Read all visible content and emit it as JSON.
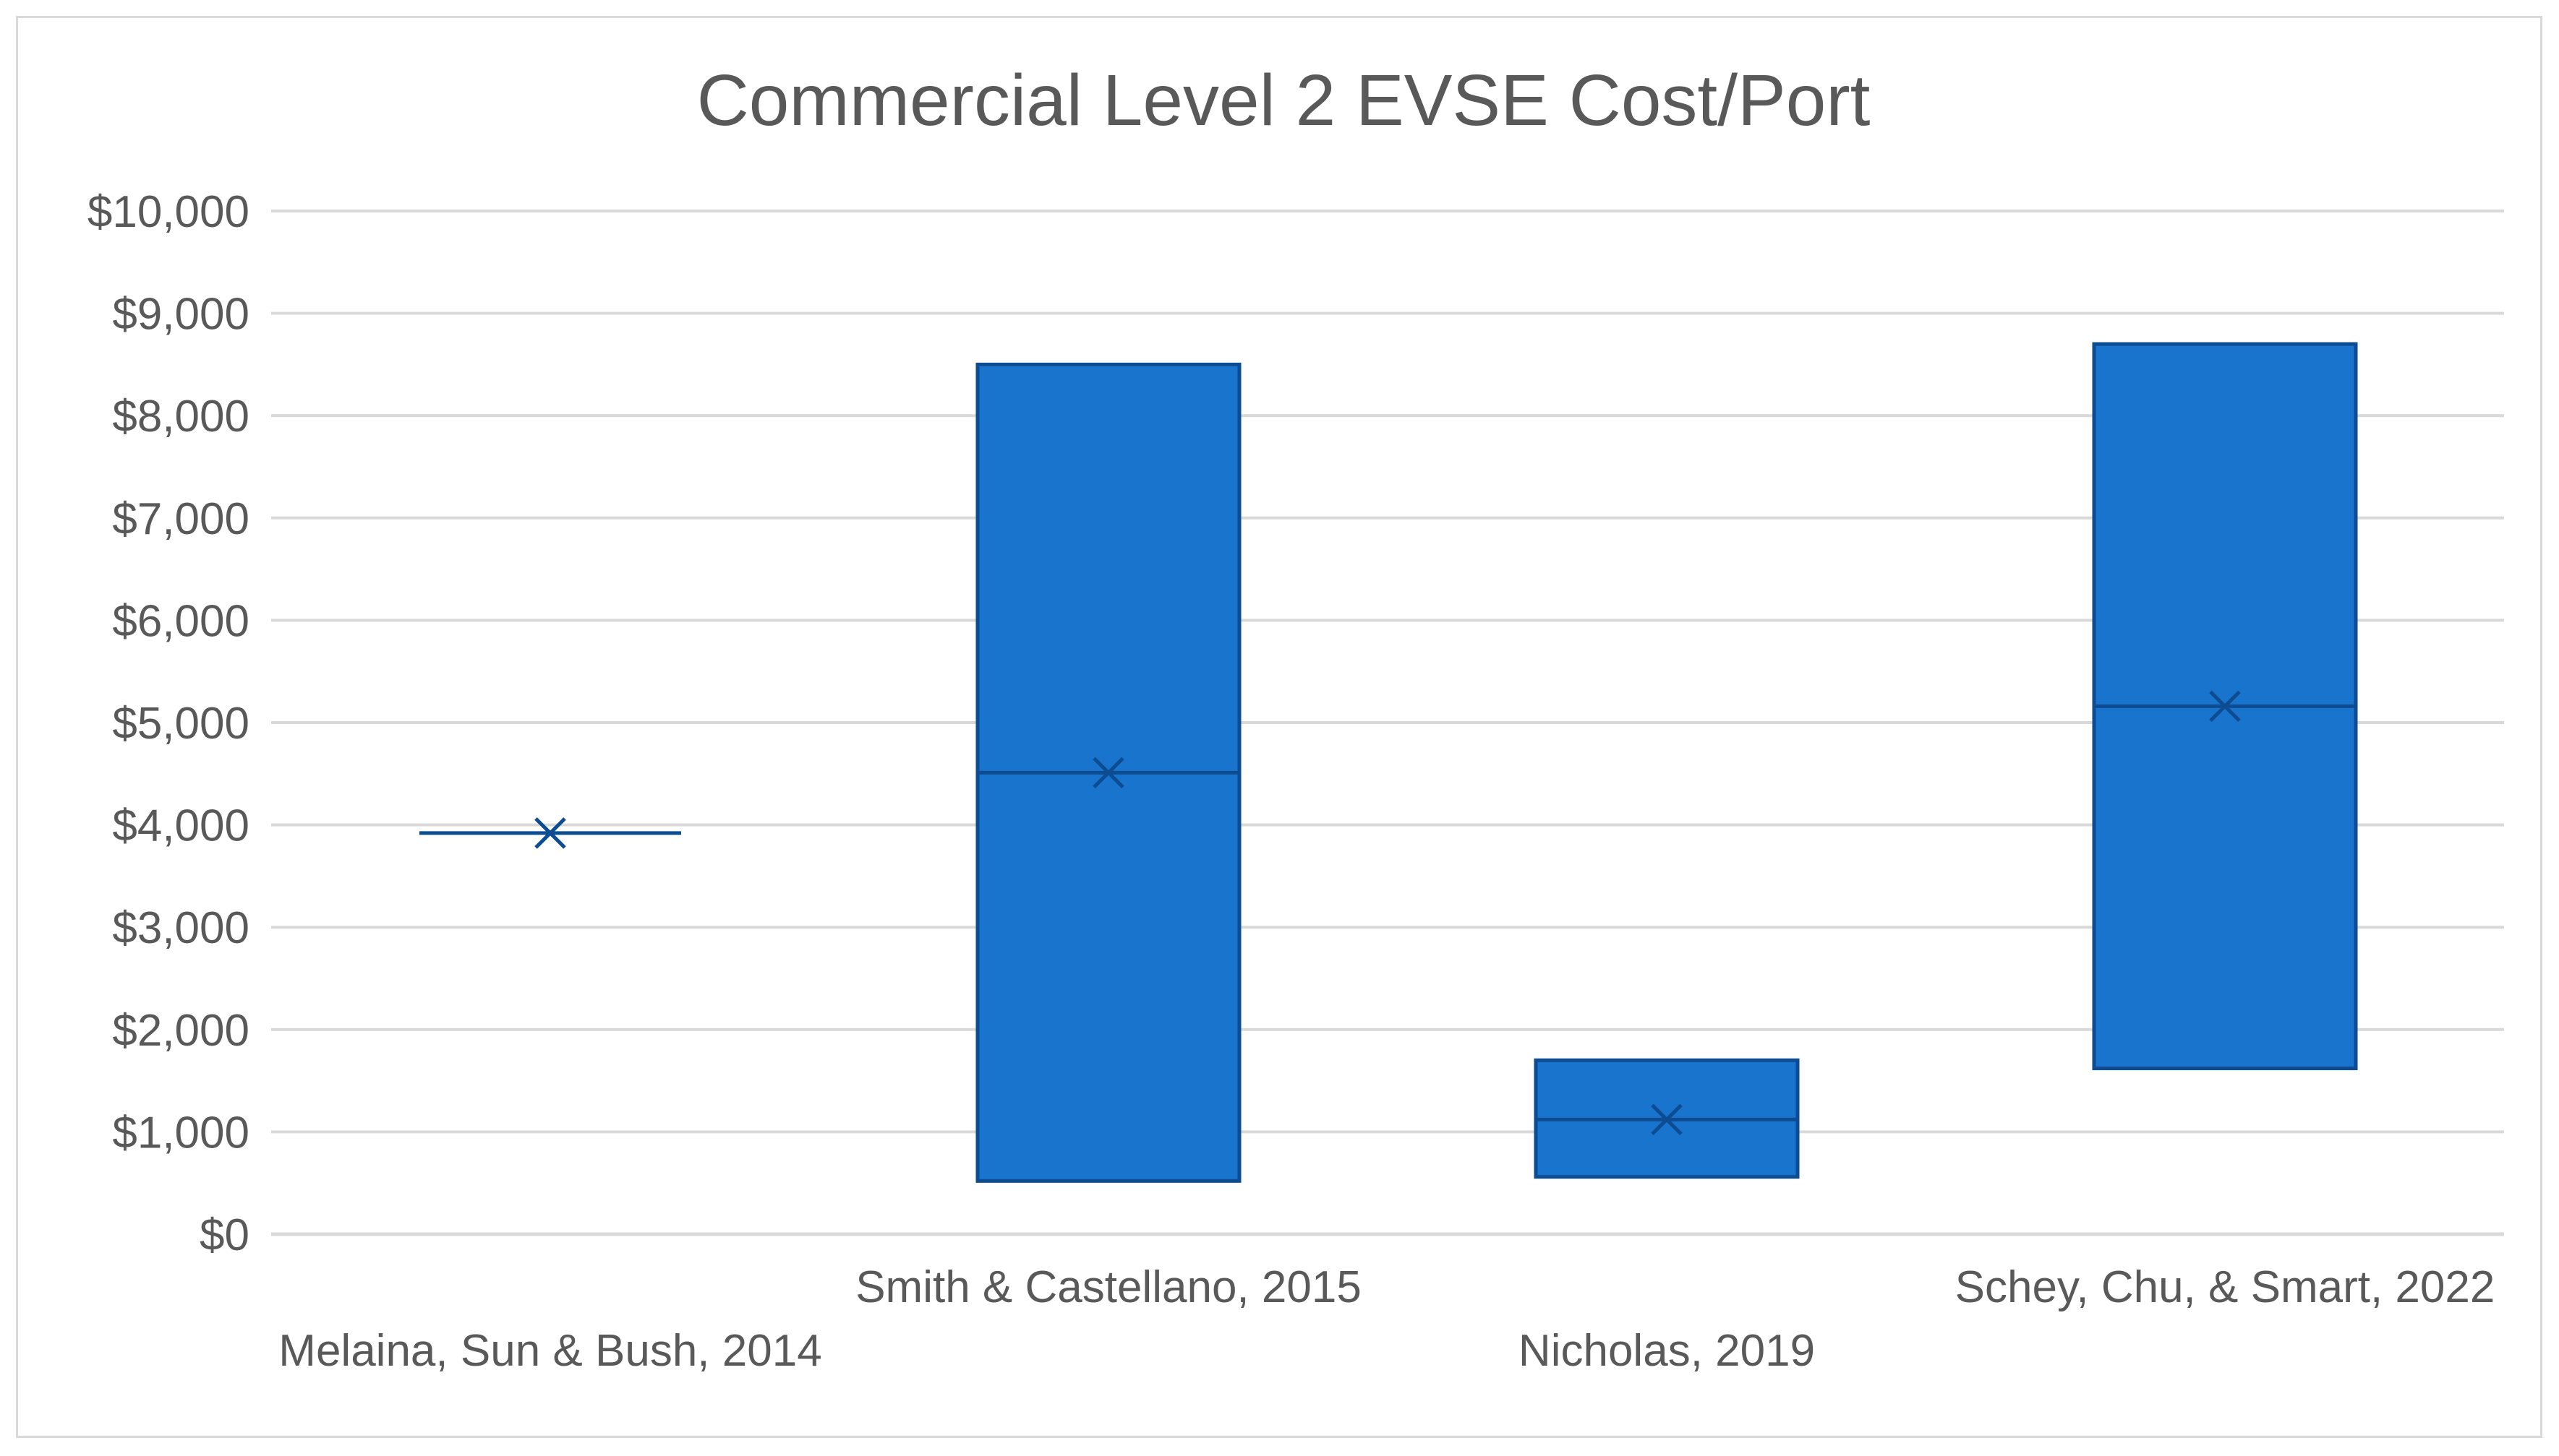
{
  "chart_data": {
    "type": "box",
    "title": "Commercial Level 2 EVSE Cost/Port",
    "xlabel": "",
    "ylabel": "",
    "ylim": [
      0,
      10000
    ],
    "y_ticks": [
      0,
      1000,
      2000,
      3000,
      4000,
      5000,
      6000,
      7000,
      8000,
      9000,
      10000
    ],
    "y_tick_labels": [
      "$0",
      "$1,000",
      "$2,000",
      "$3,000",
      "$4,000",
      "$5,000",
      "$6,000",
      "$7,000",
      "$8,000",
      "$9,000",
      "$10,000"
    ],
    "grid": true,
    "legend": "none",
    "categories": [
      "Melaina, Sun & Bush, 2014",
      "Smith & Castellano, 2015",
      "Nicholas, 2019",
      "Schey, Chu, & Smart, 2022"
    ],
    "boxes": [
      {
        "min": 3920,
        "max": 3920,
        "median": 3920,
        "mean": 3920
      },
      {
        "min": 520,
        "max": 8500,
        "median": 4510,
        "mean": 4510
      },
      {
        "min": 560,
        "max": 1700,
        "median": 1120,
        "mean": 1120
      },
      {
        "min": 1620,
        "max": 8700,
        "median": 5160,
        "mean": 5160
      }
    ],
    "colors": {
      "box_fill": "#1874CD",
      "box_edge": "#0E4C92",
      "grid": "#d9d9d9",
      "text": "#595959",
      "axis": "#d9d9d9"
    }
  }
}
